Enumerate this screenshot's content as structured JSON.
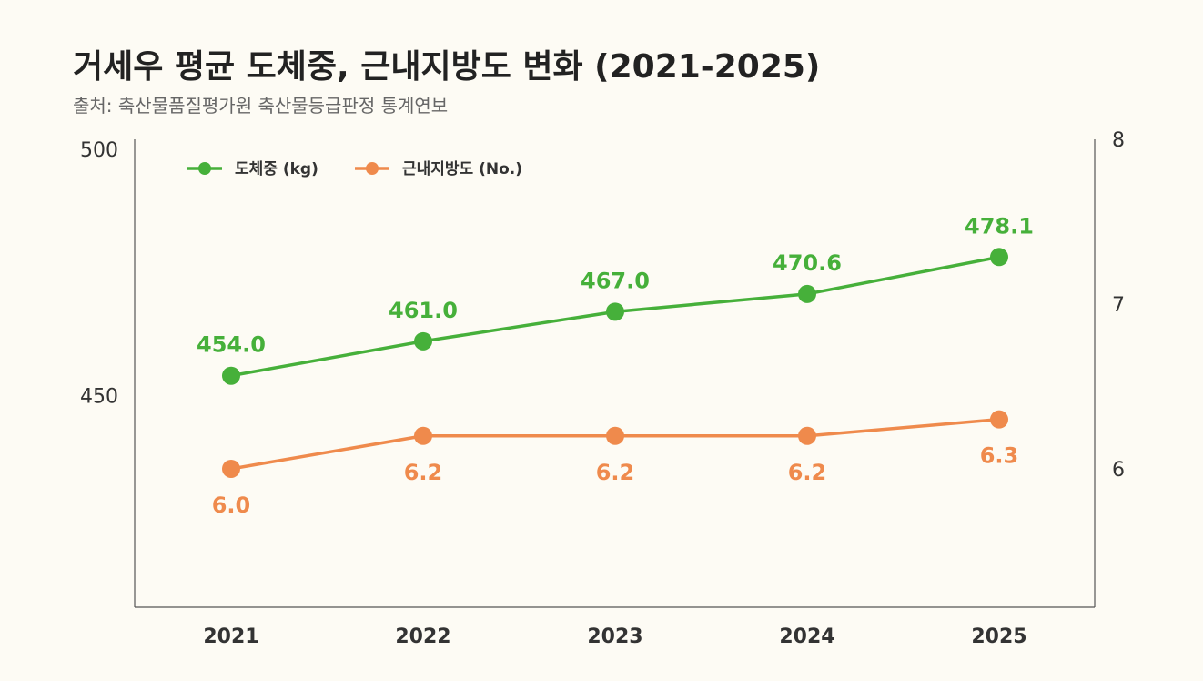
{
  "header": {
    "title": "거세우 평균 도체중, 근내지방도 변화 (2021-2025)",
    "source": "출처: 축산물품질평가원 축산물등급판정 통계연보"
  },
  "colors": {
    "weight": "#46b03a",
    "marbling": "#ef8a4c",
    "axis": "#555555",
    "background": "#fdfbf4"
  },
  "chart_data": {
    "type": "line",
    "title": "거세우 평균 도체중, 근내지방도 변화 (2021-2025)",
    "categories": [
      "2021",
      "2022",
      "2023",
      "2024",
      "2025"
    ],
    "left_axis": {
      "ylim": [
        407,
        502
      ],
      "ticks": [
        450,
        500
      ],
      "tick_labels": [
        "450",
        "500"
      ]
    },
    "right_axis": {
      "ylim": [
        5.16,
        8.0
      ],
      "ticks": [
        6,
        7,
        8
      ],
      "tick_labels": [
        "6",
        "7",
        "8"
      ]
    },
    "series": [
      {
        "name": "도체중 (kg)",
        "axis": "left",
        "values": [
          454.0,
          461.0,
          467.0,
          470.6,
          478.1
        ],
        "labels": [
          "454.0",
          "461.0",
          "467.0",
          "470.6",
          "478.1"
        ],
        "label_position": "above"
      },
      {
        "name": "근내지방도 (No.)",
        "axis": "right",
        "values": [
          6.0,
          6.2,
          6.2,
          6.2,
          6.3
        ],
        "labels": [
          "6.0",
          "6.2",
          "6.2",
          "6.2",
          "6.3"
        ],
        "label_position": "below"
      }
    ],
    "legend": "top-left",
    "grid": false
  }
}
